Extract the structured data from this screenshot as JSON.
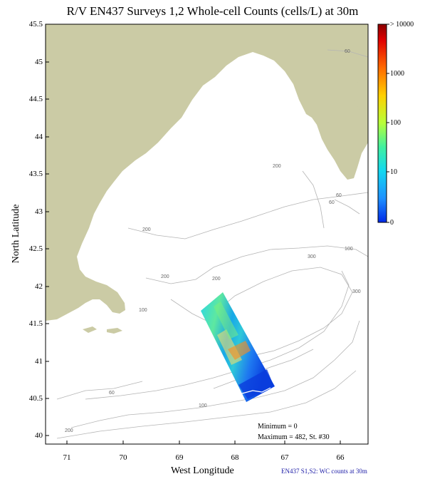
{
  "title": "R/V EN437 Surveys 1,2 Whole-cell Counts (cells/L) at 30m",
  "axes": {
    "xlabel": "West Longitude",
    "ylabel": "North Latitude",
    "xticks": [
      "71",
      "70",
      "69",
      "68",
      "67",
      "66"
    ],
    "yticks": [
      "45.5",
      "45",
      "44.5",
      "44",
      "43.5",
      "43",
      "42.5",
      "42",
      "41.5",
      "41",
      "40.5",
      "40"
    ]
  },
  "colorbar": {
    "labels": [
      "> 10000",
      "1000",
      "100",
      "10",
      "0"
    ],
    "colors": [
      "#8b0000",
      "#e00000",
      "#ff6a00",
      "#ffd000",
      "#b7ff3a",
      "#40f0a0",
      "#12d8f0",
      "#1e90ff",
      "#0028e6"
    ]
  },
  "contour_labels": [
    "60",
    "60",
    "60",
    "200",
    "200",
    "200",
    "200",
    "300",
    "300",
    "100",
    "100",
    "60",
    "100",
    "200"
  ],
  "stats": {
    "minimum": "Minimum = 0",
    "maximum": "Maximum = 482, St. #30"
  },
  "footer": "EN437 S1,S2: WC counts at 30m",
  "colors": {
    "land": "#cbcba5",
    "water": "#ffffff",
    "contour": "#b4b4b4"
  }
}
